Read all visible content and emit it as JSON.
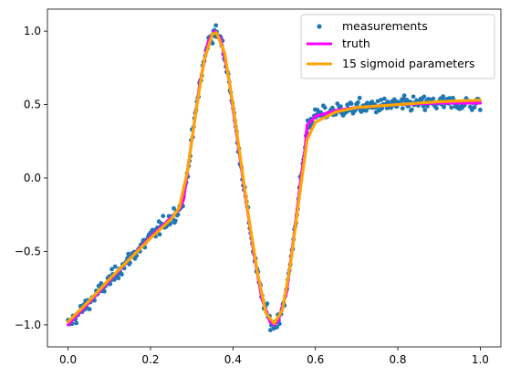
{
  "chart_data": {
    "type": "scatter",
    "xlim": [
      -0.05,
      1.05
    ],
    "ylim": [
      -1.15,
      1.15
    ],
    "xticks": [
      0.0,
      0.2,
      0.4,
      0.6,
      0.8,
      1.0
    ],
    "xtick_labels": [
      "0.0",
      "0.2",
      "0.4",
      "0.6",
      "0.8",
      "1.0"
    ],
    "yticks": [
      -1.0,
      -0.5,
      0.0,
      0.5,
      1.0
    ],
    "ytick_labels": [
      "−1.0",
      "−0.5",
      "0.0",
      "0.5",
      "1.0"
    ],
    "grid": false,
    "legend_position": "top-right",
    "series": [
      {
        "name": "measurements",
        "kind": "scatter",
        "color": "#1f77b4",
        "noise": 0.035,
        "x_range": [
          0.0,
          1.0
        ],
        "n_points": 500
      },
      {
        "name": "truth",
        "kind": "line",
        "color": "#ff00ff",
        "x": [
          0.0,
          0.05,
          0.1,
          0.15,
          0.2,
          0.25,
          0.27,
          0.28,
          0.3,
          0.32,
          0.34,
          0.355,
          0.37,
          0.39,
          0.41,
          0.43,
          0.45,
          0.47,
          0.49,
          0.5,
          0.51,
          0.53,
          0.55,
          0.565,
          0.575,
          0.58,
          0.6,
          0.65,
          0.7,
          0.8,
          0.9,
          1.0
        ],
        "y": [
          -1.0,
          -0.85,
          -0.7,
          -0.55,
          -0.4,
          -0.27,
          -0.21,
          -0.15,
          0.25,
          0.65,
          0.93,
          1.0,
          0.95,
          0.68,
          0.28,
          -0.12,
          -0.5,
          -0.82,
          -0.98,
          -1.0,
          -0.97,
          -0.78,
          -0.35,
          0.0,
          0.2,
          0.36,
          0.42,
          0.46,
          0.48,
          0.5,
          0.51,
          0.51
        ]
      },
      {
        "name": "15 sigmoid parameters",
        "kind": "line",
        "color": "#ffa500",
        "x": [
          0.0,
          0.05,
          0.1,
          0.15,
          0.2,
          0.25,
          0.27,
          0.29,
          0.31,
          0.33,
          0.35,
          0.36,
          0.38,
          0.4,
          0.42,
          0.44,
          0.46,
          0.48,
          0.5,
          0.52,
          0.54,
          0.56,
          0.58,
          0.6,
          0.65,
          0.7,
          0.8,
          0.9,
          1.0
        ],
        "y": [
          -0.98,
          -0.84,
          -0.69,
          -0.55,
          -0.41,
          -0.28,
          -0.2,
          0.05,
          0.45,
          0.8,
          0.98,
          0.99,
          0.85,
          0.5,
          0.1,
          -0.3,
          -0.65,
          -0.92,
          -0.99,
          -0.9,
          -0.58,
          -0.15,
          0.26,
          0.38,
          0.45,
          0.48,
          0.5,
          0.52,
          0.53
        ]
      }
    ]
  }
}
